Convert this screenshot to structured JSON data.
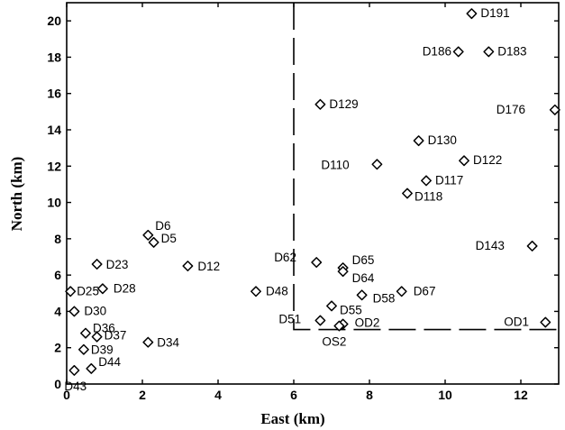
{
  "chart_data": {
    "type": "scatter",
    "title": "",
    "xlabel": "East (km)",
    "ylabel": "North (km)",
    "xlim": [
      0,
      13
    ],
    "ylim": [
      0,
      21
    ],
    "xticks": [
      "0",
      "2",
      "4",
      "6",
      "8",
      "10",
      "12"
    ],
    "yticks": [
      "0",
      "2",
      "4",
      "6",
      "8",
      "10",
      "12",
      "14",
      "16",
      "18",
      "20"
    ],
    "grid": false,
    "marker": "diamond-open",
    "points": [
      {
        "label": "D191",
        "x": 10.7,
        "y": 20.4
      },
      {
        "label": "D186",
        "x": 10.35,
        "y": 18.3
      },
      {
        "label": "D183",
        "x": 11.15,
        "y": 18.3
      },
      {
        "label": "D129",
        "x": 6.7,
        "y": 15.4
      },
      {
        "label": "D176",
        "x": 12.9,
        "y": 15.1
      },
      {
        "label": "D130",
        "x": 9.3,
        "y": 13.4
      },
      {
        "label": "D110",
        "x": 8.2,
        "y": 12.1
      },
      {
        "label": "D122",
        "x": 10.5,
        "y": 12.3
      },
      {
        "label": "D117",
        "x": 9.5,
        "y": 11.2
      },
      {
        "label": "D118",
        "x": 9.0,
        "y": 10.5
      },
      {
        "label": "D6",
        "x": 2.15,
        "y": 8.2
      },
      {
        "label": "D5",
        "x": 2.3,
        "y": 7.8
      },
      {
        "label": "D143",
        "x": 12.3,
        "y": 7.6
      },
      {
        "label": "D62",
        "x": 6.6,
        "y": 6.7
      },
      {
        "label": "D65",
        "x": 7.3,
        "y": 6.4
      },
      {
        "label": "D64",
        "x": 7.3,
        "y": 6.2
      },
      {
        "label": "D23",
        "x": 0.8,
        "y": 6.6
      },
      {
        "label": "D12",
        "x": 3.2,
        "y": 6.5
      },
      {
        "label": "D25",
        "x": 0.1,
        "y": 5.1
      },
      {
        "label": "D28",
        "x": 0.95,
        "y": 5.25
      },
      {
        "label": "D48",
        "x": 5.0,
        "y": 5.1
      },
      {
        "label": "D67",
        "x": 8.85,
        "y": 5.1
      },
      {
        "label": "D58",
        "x": 7.8,
        "y": 4.9
      },
      {
        "label": "D30",
        "x": 0.2,
        "y": 4.0
      },
      {
        "label": "D55",
        "x": 7.0,
        "y": 4.3
      },
      {
        "label": "D51",
        "x": 6.7,
        "y": 3.5
      },
      {
        "label": "D36",
        "x": 0.5,
        "y": 2.8
      },
      {
        "label": "D37",
        "x": 0.8,
        "y": 2.6
      },
      {
        "label": "OD2",
        "x": 7.3,
        "y": 3.3
      },
      {
        "label": "OS2",
        "x": 7.2,
        "y": 3.2
      },
      {
        "label": "OD1",
        "x": 12.65,
        "y": 3.4
      },
      {
        "label": "D39",
        "x": 0.45,
        "y": 1.9
      },
      {
        "label": "D34",
        "x": 2.15,
        "y": 2.3
      },
      {
        "label": "D44",
        "x": 0.65,
        "y": 0.85
      },
      {
        "label": "D43",
        "x": 0.2,
        "y": 0.75
      }
    ],
    "boundary": {
      "x_at": 6,
      "y_at": 3,
      "style": "dashed"
    }
  }
}
